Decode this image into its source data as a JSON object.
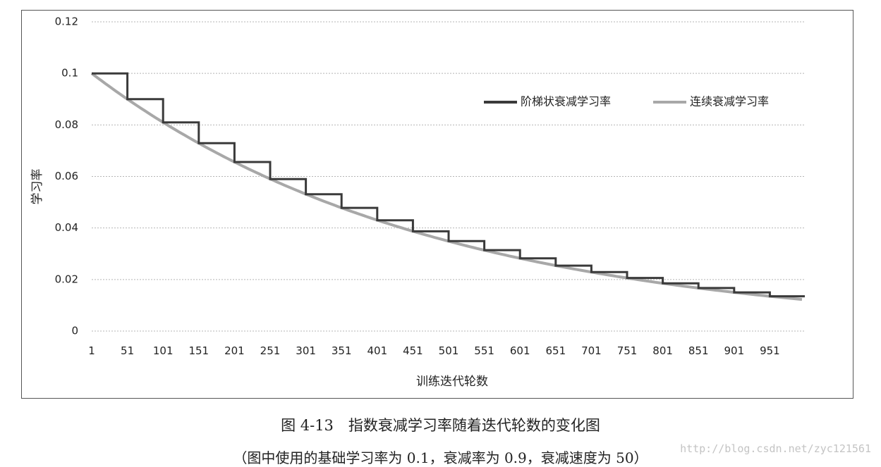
{
  "chart_data": {
    "type": "line",
    "title": "",
    "xlabel": "训练迭代轮数",
    "ylabel": "学习率",
    "xlim": [
      1,
      1000
    ],
    "ylim": [
      0,
      0.12
    ],
    "x_ticks": [
      "1",
      "51",
      "101",
      "151",
      "201",
      "251",
      "301",
      "351",
      "401",
      "451",
      "501",
      "551",
      "601",
      "651",
      "701",
      "751",
      "801",
      "851",
      "901",
      "951"
    ],
    "y_ticks": [
      "0",
      "0.02",
      "0.04",
      "0.06",
      "0.08",
      "0.1",
      "0.12"
    ],
    "grid": true,
    "legend_position": "top-right",
    "base_learning_rate": 0.1,
    "decay_rate": 0.9,
    "decay_steps": 50,
    "series": [
      {
        "name": "阶梯状衰减学习率",
        "style": "staircase",
        "color": "#3a3a3a",
        "x": [
          1,
          51,
          101,
          151,
          201,
          251,
          301,
          351,
          401,
          451,
          501,
          551,
          601,
          651,
          701,
          751,
          801,
          851,
          901,
          951,
          1000
        ],
        "values": [
          0.1,
          0.09,
          0.081,
          0.0729,
          0.0656,
          0.059,
          0.0531,
          0.0478,
          0.043,
          0.0387,
          0.0349,
          0.0314,
          0.0282,
          0.0254,
          0.0229,
          0.0206,
          0.0185,
          0.0167,
          0.015,
          0.0135,
          0.0122
        ]
      },
      {
        "name": "连续衰减学习率",
        "style": "smooth",
        "color": "#a8a8a8",
        "x": [
          1,
          51,
          101,
          151,
          201,
          251,
          301,
          351,
          401,
          451,
          501,
          551,
          601,
          651,
          701,
          751,
          801,
          851,
          901,
          951,
          1000
        ],
        "values": [
          0.1,
          0.09,
          0.081,
          0.0729,
          0.0656,
          0.059,
          0.0531,
          0.0478,
          0.043,
          0.0387,
          0.0349,
          0.0314,
          0.0282,
          0.0254,
          0.0229,
          0.0206,
          0.0185,
          0.0167,
          0.015,
          0.0135,
          0.0122
        ]
      }
    ]
  },
  "caption": {
    "figure": "图 4-13　指数衰减学习率随着迭代轮数的变化图",
    "note": "（图中使用的基础学习率为 0.1，衰减率为 0.9，衰减速度为 50）"
  },
  "watermark": "http://blog.csdn.net/zyc121561"
}
